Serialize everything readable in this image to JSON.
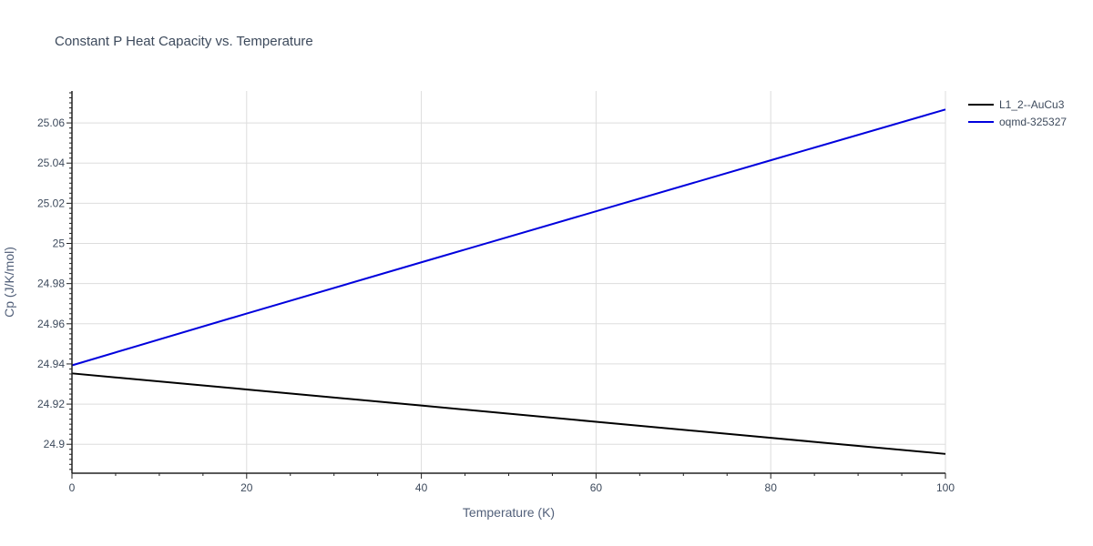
{
  "chart_data": {
    "type": "line",
    "title": "Constant P Heat Capacity vs. Temperature",
    "xlabel": "Temperature (K)",
    "ylabel": "Cp (J/K/mol)",
    "xlim": [
      0,
      100
    ],
    "ylim": [
      24.8856,
      25.0759
    ],
    "x_ticks": [
      0,
      20,
      40,
      60,
      80,
      100
    ],
    "x_tick_labels": [
      "0",
      "20",
      "40",
      "60",
      "80",
      "100"
    ],
    "y_ticks": [
      24.9,
      24.92,
      24.94,
      24.96,
      24.98,
      25,
      25.02,
      25.04,
      25.06
    ],
    "y_tick_labels": [
      "24.9",
      "24.92",
      "24.94",
      "24.96",
      "24.98",
      "25",
      "25.02",
      "25.04",
      "25.06"
    ],
    "grid": true,
    "legend_position": "top-right",
    "series": [
      {
        "name": "L1_2--AuCu3",
        "color": "#000000",
        "x": [
          0,
          20,
          40,
          60,
          80,
          100
        ],
        "y": [
          24.9353,
          24.9273,
          24.9193,
          24.9112,
          24.9032,
          24.8952
        ]
      },
      {
        "name": "oqmd-325327",
        "color": "#0000dd",
        "x": [
          0,
          20,
          40,
          60,
          80,
          100
        ],
        "y": [
          24.9393,
          24.9651,
          24.9906,
          25.016,
          25.0414,
          25.0667
        ]
      }
    ]
  }
}
